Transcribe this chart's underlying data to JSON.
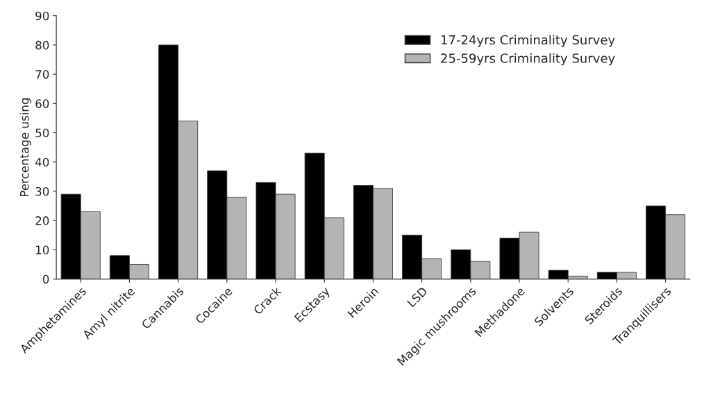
{
  "chart_data": {
    "type": "bar",
    "ylabel": "Percentage using",
    "categories": [
      "Amphetamines",
      "Amyl nitrite",
      "Cannabis",
      "Cocaine",
      "Crack",
      "Ecstasy",
      "Heroin",
      "LSD",
      "Magic mushrooms",
      "Methadone",
      "Solvents",
      "Steroids",
      "Tranquillisers"
    ],
    "series": [
      {
        "name": "17-24yrs Criminality Survey",
        "color": "#000000",
        "values": [
          29,
          8,
          80,
          37,
          33,
          43,
          32,
          15,
          10,
          14,
          3,
          2.3,
          25
        ]
      },
      {
        "name": "25-59yrs Criminality Survey",
        "color": "#b4b4b4",
        "values": [
          23,
          5,
          54,
          28,
          29,
          21,
          31,
          7,
          6,
          16,
          1,
          2.3,
          22
        ]
      }
    ],
    "ylim": [
      0,
      90
    ],
    "yticks": [
      0,
      10,
      20,
      30,
      40,
      50,
      60,
      70,
      80,
      90
    ],
    "legend": "top right"
  }
}
